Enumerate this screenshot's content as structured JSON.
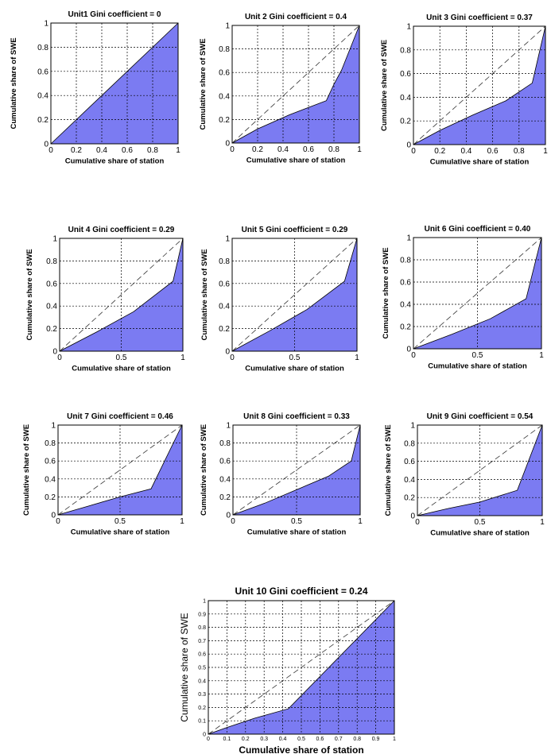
{
  "chart_data": [
    {
      "type": "area",
      "title": "Unit1 Gini coefficient = 0",
      "xlabel": "Cumulative share of station",
      "ylabel": "Cumulative share of SWE",
      "xlim": [
        0,
        1
      ],
      "ylim": [
        0,
        1
      ],
      "xticks": [
        "0",
        "0.2",
        "0.4",
        "0.6",
        "0.8",
        "1"
      ],
      "yticks": [
        "0",
        "0.2",
        "0.4",
        "0.6",
        "0.8",
        "1"
      ],
      "grid": true,
      "equality_line": false,
      "fill_color": "#7b7bf2",
      "lorenz": {
        "x": [
          0,
          1
        ],
        "y": [
          0,
          1
        ]
      }
    },
    {
      "type": "area",
      "title": "Unit 2 Gini coefficient = 0.4",
      "xlabel": "Cumulative share of station",
      "ylabel": "Cumulative share of SWE",
      "xlim": [
        0,
        1
      ],
      "ylim": [
        0,
        1
      ],
      "xticks": [
        "0",
        "0.2",
        "0.4",
        "0.6",
        "0.8",
        "1"
      ],
      "yticks": [
        "0",
        "0.2",
        "0.4",
        "0.6",
        "0.8",
        "1"
      ],
      "grid": true,
      "equality_line": true,
      "fill_color": "#7b7bf2",
      "lorenz": {
        "x": [
          0,
          0.2,
          0.45,
          0.74,
          0.8,
          0.86,
          1
        ],
        "y": [
          0,
          0.12,
          0.24,
          0.36,
          0.5,
          0.62,
          1
        ]
      }
    },
    {
      "type": "area",
      "title": "Unit 3 Gini coefficient = 0.37",
      "xlabel": "Cumulative share of station",
      "ylabel": "Cumulative share of SWE",
      "xlim": [
        0,
        1
      ],
      "ylim": [
        0,
        1
      ],
      "xticks": [
        "0",
        "0.2",
        "0.4",
        "0.6",
        "0.8",
        "1"
      ],
      "yticks": [
        "0",
        "0.2",
        "0.4",
        "0.6",
        "0.8",
        "1"
      ],
      "grid": true,
      "equality_line": true,
      "fill_color": "#7b7bf2",
      "lorenz": {
        "x": [
          0,
          0.2,
          0.45,
          0.7,
          0.9,
          1
        ],
        "y": [
          0,
          0.12,
          0.25,
          0.37,
          0.52,
          1
        ]
      }
    },
    {
      "type": "area",
      "title": "Unit 4 Gini coefficient = 0.29",
      "xlabel": "Cumulative share of station",
      "ylabel": "Cumulative share of SWE",
      "xlim": [
        0,
        1
      ],
      "ylim": [
        0,
        1
      ],
      "xticks": [
        "0",
        "0.5",
        "1"
      ],
      "yticks": [
        "0",
        "0.2",
        "0.4",
        "0.6",
        "0.8",
        "1"
      ],
      "grid": true,
      "equality_line": true,
      "fill_color": "#7b7bf2",
      "lorenz": {
        "x": [
          0,
          0.3,
          0.6,
          0.92,
          1
        ],
        "y": [
          0,
          0.17,
          0.35,
          0.62,
          1
        ]
      }
    },
    {
      "type": "area",
      "title": "Unit 5 Gini coefficient = 0.29",
      "xlabel": "Cumulative share of station",
      "ylabel": "Cumulative share of SWE",
      "xlim": [
        0,
        1
      ],
      "ylim": [
        0,
        1
      ],
      "xticks": [
        "0",
        "0.5",
        "1"
      ],
      "yticks": [
        "0",
        "0.2",
        "0.4",
        "0.6",
        "0.8",
        "1"
      ],
      "grid": true,
      "equality_line": true,
      "fill_color": "#7b7bf2",
      "lorenz": {
        "x": [
          0,
          0.3,
          0.6,
          0.9,
          1
        ],
        "y": [
          0,
          0.18,
          0.37,
          0.62,
          1
        ]
      }
    },
    {
      "type": "area",
      "title": "Unit 6 Gini coefficient = 0.40",
      "xlabel": "Cumulative share of station",
      "ylabel": "Cumulative share of SWE",
      "xlim": [
        0,
        1
      ],
      "ylim": [
        0,
        1
      ],
      "xticks": [
        "0",
        "0.5",
        "1"
      ],
      "yticks": [
        "0",
        "0.2",
        "0.4",
        "0.6",
        "0.8",
        "1"
      ],
      "grid": true,
      "equality_line": true,
      "fill_color": "#7b7bf2",
      "lorenz": {
        "x": [
          0,
          0.3,
          0.6,
          0.88,
          1
        ],
        "y": [
          0,
          0.13,
          0.27,
          0.45,
          1
        ]
      }
    },
    {
      "type": "area",
      "title": "Unit 7 Gini coefficient = 0.46",
      "xlabel": "Cumulative share of station",
      "ylabel": "Cumulative share of SWE",
      "xlim": [
        0,
        1
      ],
      "ylim": [
        0,
        1
      ],
      "xticks": [
        "0",
        "0.5",
        "1"
      ],
      "yticks": [
        "0",
        "0.2",
        "0.4",
        "0.6",
        "0.8",
        "1"
      ],
      "grid": true,
      "equality_line": true,
      "fill_color": "#7b7bf2",
      "lorenz": {
        "x": [
          0,
          0.25,
          0.5,
          0.75,
          1
        ],
        "y": [
          0,
          0.1,
          0.2,
          0.29,
          1
        ]
      }
    },
    {
      "type": "area",
      "title": "Unit 8 Gini coefficient = 0.33",
      "xlabel": "Cumulative share of station",
      "ylabel": "Cumulative share of SWE",
      "xlim": [
        0,
        1
      ],
      "ylim": [
        0,
        1
      ],
      "xticks": [
        "0",
        "0.5",
        "1"
      ],
      "yticks": [
        "0",
        "0.2",
        "0.4",
        "0.6",
        "0.8",
        "1"
      ],
      "grid": true,
      "equality_line": true,
      "fill_color": "#7b7bf2",
      "lorenz": {
        "x": [
          0,
          0.25,
          0.5,
          0.75,
          0.93,
          1
        ],
        "y": [
          0,
          0.13,
          0.28,
          0.43,
          0.6,
          1
        ]
      }
    },
    {
      "type": "area",
      "title": "Unit 9 Gini coefficient = 0.54",
      "xlabel": "Cumulative share of station",
      "ylabel": "Cumulative share of SWE",
      "xlim": [
        0,
        1
      ],
      "ylim": [
        0,
        1
      ],
      "xticks": [
        "0",
        "0.5",
        "1"
      ],
      "yticks": [
        "0",
        "0.2",
        "0.4",
        "0.6",
        "0.8",
        "1"
      ],
      "grid": true,
      "equality_line": true,
      "fill_color": "#7b7bf2",
      "lorenz": {
        "x": [
          0,
          0.25,
          0.5,
          0.8,
          1
        ],
        "y": [
          0,
          0.08,
          0.15,
          0.28,
          1
        ]
      }
    },
    {
      "type": "area",
      "title": "Unit 10 Gini coefficient = 0.24",
      "xlabel": "Cumulative share of station",
      "ylabel": "Cumulative share of SWE",
      "xlim": [
        0,
        1
      ],
      "ylim": [
        0,
        1
      ],
      "xticks": [
        "0",
        "0.1",
        "0.2",
        "0.3",
        "0.4",
        "0.5",
        "0.6",
        "0.7",
        "0.8",
        "0.9",
        "1"
      ],
      "yticks": [
        "0",
        "0.1",
        "0.2",
        "0.3",
        "0.4",
        "0.5",
        "0.6",
        "0.7",
        "0.8",
        "0.9",
        "1"
      ],
      "grid": true,
      "equality_line": true,
      "fill_color": "#7b7bf2",
      "lorenz": {
        "x": [
          0,
          0.1,
          0.25,
          0.43,
          1
        ],
        "y": [
          0,
          0.05,
          0.12,
          0.19,
          1
        ]
      }
    }
  ]
}
